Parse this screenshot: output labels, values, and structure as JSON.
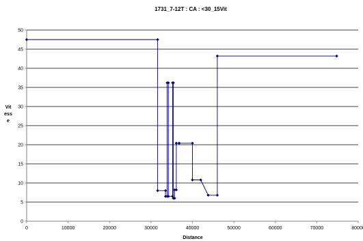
{
  "chart_data": {
    "type": "line",
    "title": "1731_7-12T : CA : <30_15Vit",
    "xlabel": "Distance",
    "ylabel": [
      "Vit",
      "ess",
      "e"
    ],
    "xlim": [
      0,
      80000
    ],
    "ylim": [
      0,
      50
    ],
    "x_ticks": [
      0,
      10000,
      20000,
      30000,
      40000,
      50000,
      60000,
      70000,
      80000
    ],
    "y_ticks": [
      0,
      5,
      10,
      15,
      20,
      25,
      30,
      35,
      40,
      45,
      50
    ],
    "grid": "horizontal",
    "legend": "none",
    "colors": {
      "line": "#000080",
      "marker": "#000080",
      "grid": "#000000",
      "axis": "#808080"
    },
    "series": [
      {
        "x": [
          0,
          31600,
          31600,
          33500,
          33500,
          33900,
          33900,
          34200,
          34200,
          35200,
          35200,
          35400,
          35400,
          35700,
          35700,
          36100,
          36100,
          36800,
          36800,
          40000,
          40000,
          42000,
          43800,
          46000,
          46000,
          74800
        ],
        "y": [
          47.5,
          47.5,
          8,
          8,
          6.5,
          6.5,
          36.2,
          36.2,
          6.5,
          6.5,
          36.2,
          36.2,
          6,
          6,
          8.2,
          8.2,
          20.4,
          20.4,
          20.4,
          20.4,
          10.8,
          10.8,
          6.8,
          6.8,
          43.2,
          43.2
        ]
      }
    ]
  }
}
